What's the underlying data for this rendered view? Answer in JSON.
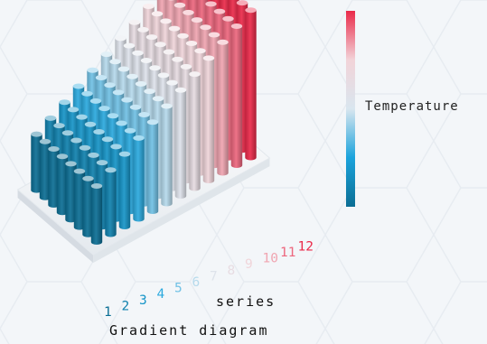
{
  "chart_data": {
    "type": "bar",
    "subtype": "3d-column-matrix",
    "title": "Gradient diagram",
    "xlabel": "series",
    "categories": [
      "1",
      "2",
      "3",
      "4",
      "5",
      "6",
      "7",
      "8",
      "9",
      "10",
      "11",
      "12"
    ],
    "rows_per_series": 8,
    "series_values": [
      1,
      2,
      3,
      4,
      5,
      6,
      7,
      8,
      9,
      10,
      11,
      12
    ],
    "legend": {
      "label": "Temperature",
      "type": "color-gradient",
      "position": "right"
    },
    "grid": false
  },
  "colors": {
    "gradient": [
      "#0b6e94",
      "#1aa3dc",
      "#d9e6ef",
      "#f2d3d8",
      "#ea2a4a"
    ],
    "platform": "#ffffff",
    "background": "#f3f6f9"
  }
}
